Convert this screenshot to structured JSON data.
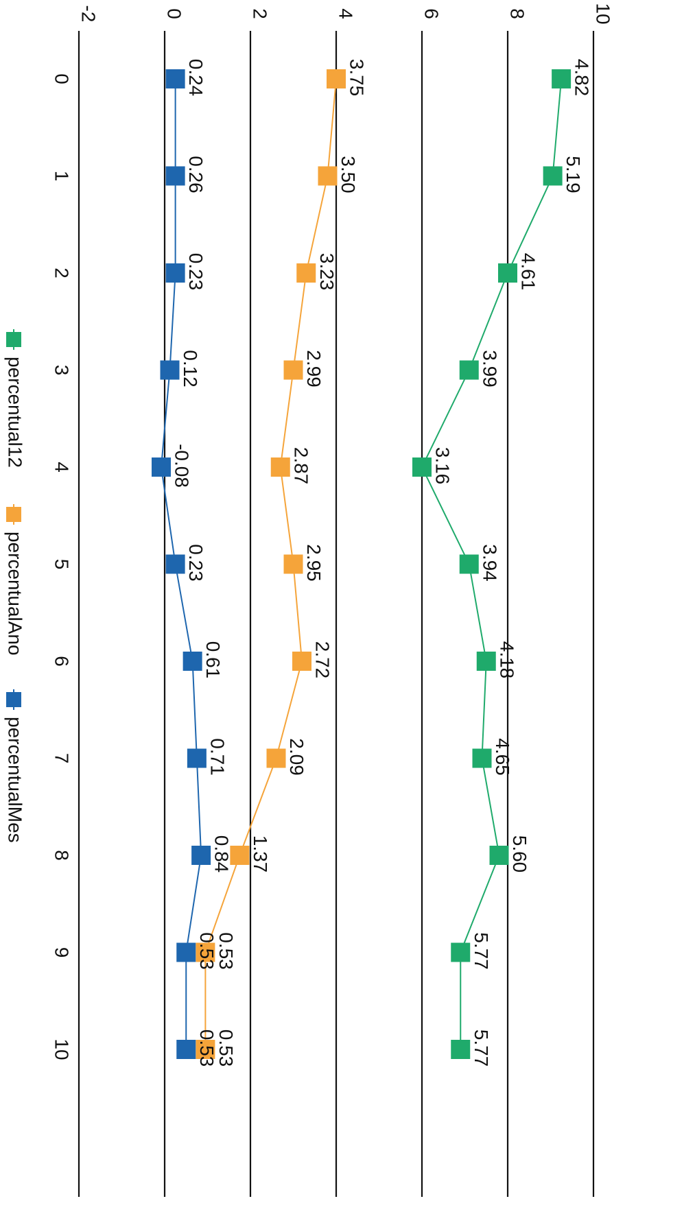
{
  "colors": {
    "background": "#ffffff",
    "grid": "#111111",
    "text": "#111111"
  },
  "chart_data": {
    "type": "line",
    "orientation": "rotated-90-clockwise",
    "x": [
      "0",
      "1",
      "2",
      "3",
      "4",
      "5",
      "6",
      "7",
      "8",
      "9",
      "10"
    ],
    "y_ticks": [
      "-2",
      "0",
      "2",
      "4",
      "6",
      "8",
      "10"
    ],
    "ylim": [
      -2,
      10
    ],
    "grid": true,
    "legend_position": "bottom",
    "series": [
      {
        "name": "percentual12",
        "color": "#1faa6b",
        "values": [
          4.82,
          5.19,
          4.61,
          3.99,
          3.16,
          3.94,
          4.18,
          4.65,
          5.6,
          5.77,
          5.77
        ],
        "plot_values": [
          9.25,
          9.05,
          8.0,
          7.1,
          6.0,
          7.1,
          7.5,
          7.4,
          7.8,
          6.9,
          6.9
        ],
        "labels": [
          "4.82",
          "5.19",
          "4.61",
          "3.99",
          "3.16",
          "3.94",
          "4.18",
          "4.65",
          "5.60",
          "5.77",
          "5.77"
        ]
      },
      {
        "name": "percentualAno",
        "color": "#f5a43a",
        "values": [
          3.75,
          3.5,
          3.23,
          2.99,
          2.87,
          2.95,
          2.72,
          2.09,
          1.37,
          0.53,
          0.53
        ],
        "plot_values": [
          4.0,
          3.8,
          3.3,
          3.0,
          2.7,
          3.0,
          3.2,
          2.6,
          1.75,
          0.95,
          0.95
        ],
        "labels": [
          "3.75",
          "3.50",
          "3.23",
          "2.99",
          "2.87",
          "2.95",
          "2.72",
          "2.09",
          "1.37",
          "0.53",
          "0.53"
        ]
      },
      {
        "name": "percentualMes",
        "color": "#1e66ae",
        "values": [
          0.24,
          0.26,
          0.23,
          0.12,
          -0.08,
          0.23,
          0.61,
          0.71,
          0.84,
          0.53,
          0.53
        ],
        "plot_values": [
          0.25,
          0.25,
          0.25,
          0.12,
          -0.08,
          0.25,
          0.65,
          0.75,
          0.85,
          0.5,
          0.5
        ],
        "labels": [
          "0.24",
          "0.26",
          "0.23",
          "0.12",
          "-0.08",
          "0.23",
          "0.61",
          "0.71",
          "0.84",
          "0.53",
          "0.53"
        ]
      }
    ]
  }
}
